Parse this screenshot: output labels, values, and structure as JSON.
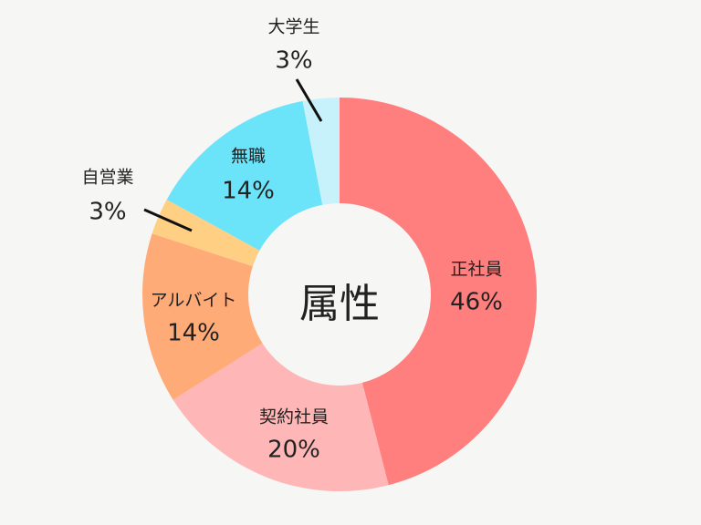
{
  "chart_data": {
    "type": "pie",
    "title": "属性",
    "slices": [
      {
        "label": "正社員",
        "value": 46,
        "value_label": "46%",
        "color": "#ff7f7f"
      },
      {
        "label": "契約社員",
        "value": 20,
        "value_label": "20%",
        "color": "#ffb6b6"
      },
      {
        "label": "アルバイト",
        "value": 14,
        "value_label": "14%",
        "color": "#ffab78"
      },
      {
        "label": "自営業",
        "value": 3,
        "value_label": "3%",
        "color": "#ffcf84"
      },
      {
        "label": "無職",
        "value": 14,
        "value_label": "14%",
        "color": "#6be4fa"
      },
      {
        "label": "大学生",
        "value": 3,
        "value_label": "3%",
        "color": "#c8f2fb"
      }
    ],
    "start_angle_deg": 0,
    "direction": "clockwise"
  }
}
